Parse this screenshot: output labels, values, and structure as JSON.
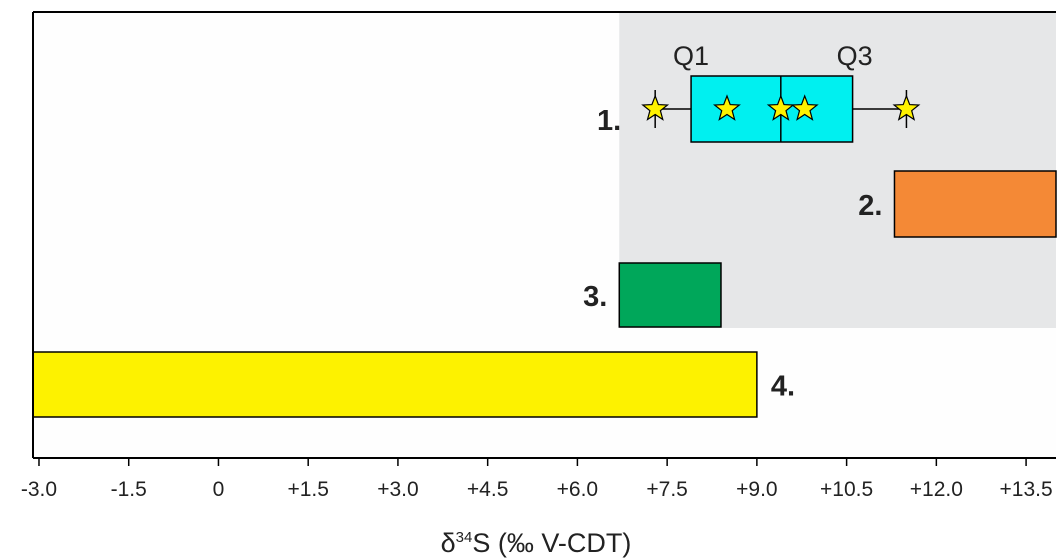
{
  "chart_data": {
    "type": "box-range",
    "xlabel_prefix": "δ",
    "xlabel_sup": "34",
    "xlabel_rest": "S (‰ V-CDT)",
    "xlim": [
      -3.1,
      14.0
    ],
    "ticks": [
      {
        "value": -3.0,
        "label": "-3.0"
      },
      {
        "value": -1.5,
        "label": "-1.5"
      },
      {
        "value": 0,
        "label": "0"
      },
      {
        "value": 1.5,
        "label": "+1.5"
      },
      {
        "value": 3.0,
        "label": "+3.0"
      },
      {
        "value": 4.5,
        "label": "+4.5"
      },
      {
        "value": 6.0,
        "label": "+6.0"
      },
      {
        "value": 7.5,
        "label": "+7.5"
      },
      {
        "value": 9.0,
        "label": "+9.0"
      },
      {
        "value": 10.5,
        "label": "+10.5"
      },
      {
        "value": 12.0,
        "label": "+12.0"
      },
      {
        "value": 13.5,
        "label": "+13.5"
      }
    ],
    "shaded_range": [
      6.7,
      14.0
    ],
    "boxplot": {
      "label": "1.",
      "whisker_min": 7.3,
      "q1": 7.9,
      "median": 9.4,
      "q3": 10.6,
      "whisker_max": 11.5,
      "points": [
        7.3,
        8.5,
        9.4,
        9.8,
        11.5
      ],
      "q1_label": "Q1",
      "q3_label": "Q3",
      "color": "#00f0f0"
    },
    "ranges": [
      {
        "label": "2.",
        "start": 11.3,
        "end": 14.0,
        "color": "#f48936"
      },
      {
        "label": "3.",
        "start": 6.7,
        "end": 8.4,
        "color": "#00a75a"
      },
      {
        "label": "4.",
        "start": -3.1,
        "end": 9.0,
        "color": "#fdf200"
      }
    ],
    "colors": {
      "shade": "#e6e7e8",
      "star": "#fff200",
      "plot_bg": "#fefefe"
    }
  }
}
